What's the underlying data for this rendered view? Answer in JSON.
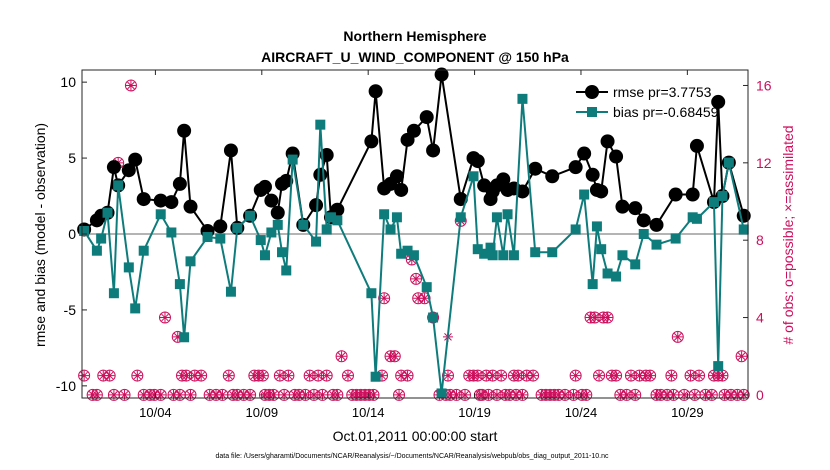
{
  "chart_data": {
    "type": "line",
    "title": "Northern Hemisphere",
    "subtitle": "AIRCRAFT_U_WIND_COMPONENT @ 150 hPa",
    "xlabel": "Oct.01,2011 00:00:00 start",
    "ylabel": "rmse and bias (model - observation)",
    "y2label": "# of obs: o=possible; ×=assimilated",
    "footnote": "data file: /Users/gharamti/Documents/NCAR/Reanalysis/~/Documents/NCAR/Reanalysis/webpub/obs_diag_output_2011-10.nc",
    "xlim": [
      0.3,
      31.6
    ],
    "ylim": [
      -10.8,
      10.8
    ],
    "y2lim": [
      -0.16,
      16.8
    ],
    "xticks": [
      3.75,
      8.75,
      13.75,
      18.75,
      23.75,
      28.75
    ],
    "xtick_labels": [
      "10/04",
      "10/09",
      "10/14",
      "10/19",
      "10/24",
      "10/29"
    ],
    "yticks": [
      -10,
      -5,
      0,
      5,
      10
    ],
    "ytick_labels": [
      "-10",
      "-5",
      "0",
      "5",
      "10"
    ],
    "y2ticks": [
      0,
      4,
      8,
      12,
      16
    ],
    "y2tick_labels": [
      "0",
      "4",
      "8",
      "12",
      "16"
    ],
    "legend_position": "top-right",
    "colors": {
      "rmse": "#000000",
      "bias": "#0f7c7c",
      "obs": "#cc0f5c",
      "zero_line": "#b4b4b4",
      "axis": "#262626"
    },
    "series": [
      {
        "name": "rmse pr=3.7753",
        "marker": "circle",
        "points": [
          [
            0.4,
            0.3
          ],
          [
            1.0,
            0.9
          ],
          [
            1.2,
            1.2
          ],
          [
            1.5,
            1.4
          ],
          [
            1.8,
            4.4
          ],
          [
            2.0,
            3.2
          ],
          [
            2.5,
            4.2
          ],
          [
            2.8,
            4.9
          ],
          [
            3.2,
            2.3
          ],
          [
            4.0,
            2.2
          ],
          [
            4.5,
            2.1
          ],
          [
            4.9,
            3.3
          ],
          [
            5.1,
            6.8
          ],
          [
            5.4,
            1.8
          ],
          [
            6.2,
            0.2
          ],
          [
            6.8,
            0.5
          ],
          [
            7.3,
            5.5
          ],
          [
            7.6,
            0.4
          ],
          [
            8.2,
            1.2
          ],
          [
            8.7,
            2.9
          ],
          [
            8.9,
            3.1
          ],
          [
            9.2,
            2.2
          ],
          [
            9.5,
            1.4
          ],
          [
            9.7,
            3.3
          ],
          [
            9.9,
            3.5
          ],
          [
            10.2,
            5.3
          ],
          [
            10.7,
            0.6
          ],
          [
            11.3,
            1.9
          ],
          [
            11.5,
            3.9
          ],
          [
            11.8,
            5.2
          ],
          [
            12.0,
            1.1
          ],
          [
            12.3,
            1.6
          ],
          [
            13.9,
            6.1
          ],
          [
            14.1,
            9.4
          ],
          [
            14.5,
            3.0
          ],
          [
            14.8,
            3.3
          ],
          [
            15.1,
            3.8
          ],
          [
            15.3,
            2.9
          ],
          [
            15.6,
            6.2
          ],
          [
            15.9,
            6.8
          ],
          [
            16.5,
            7.7
          ],
          [
            16.8,
            5.5
          ],
          [
            17.2,
            10.5
          ],
          [
            18.1,
            2.3
          ],
          [
            18.7,
            5.0
          ],
          [
            18.9,
            4.8
          ],
          [
            19.2,
            3.2
          ],
          [
            19.5,
            2.3
          ],
          [
            19.6,
            2.8
          ],
          [
            19.8,
            3.2
          ],
          [
            20.1,
            3.6
          ],
          [
            20.3,
            2.9
          ],
          [
            20.6,
            3.0
          ],
          [
            21.0,
            2.8
          ],
          [
            21.6,
            4.3
          ],
          [
            22.4,
            3.8
          ],
          [
            23.5,
            4.4
          ],
          [
            23.9,
            5.3
          ],
          [
            24.3,
            3.9
          ],
          [
            24.5,
            2.9
          ],
          [
            24.7,
            2.8
          ],
          [
            25.0,
            6.1
          ],
          [
            25.4,
            5.1
          ],
          [
            25.7,
            1.8
          ],
          [
            26.3,
            1.7
          ],
          [
            26.7,
            0.9
          ],
          [
            27.3,
            0.6
          ],
          [
            28.2,
            2.6
          ],
          [
            29.0,
            2.6
          ],
          [
            29.2,
            5.8
          ],
          [
            30.0,
            2.1
          ],
          [
            30.2,
            8.7
          ],
          [
            30.4,
            2.5
          ],
          [
            30.7,
            4.7
          ],
          [
            31.4,
            1.2
          ]
        ]
      },
      {
        "name": "bias pr=-0.68459",
        "marker": "square",
        "points": [
          [
            0.4,
            0.2
          ],
          [
            1.0,
            -1.1
          ],
          [
            1.2,
            -0.3
          ],
          [
            1.5,
            1.4
          ],
          [
            1.8,
            -3.9
          ],
          [
            2.0,
            3.2
          ],
          [
            2.5,
            -2.2
          ],
          [
            2.8,
            -4.9
          ],
          [
            3.2,
            -1.1
          ],
          [
            4.0,
            1.3
          ],
          [
            4.5,
            0.1
          ],
          [
            4.9,
            -3.3
          ],
          [
            5.1,
            -6.8
          ],
          [
            5.4,
            -1.8
          ],
          [
            6.2,
            -0.2
          ],
          [
            6.8,
            -0.3
          ],
          [
            7.3,
            -3.8
          ],
          [
            7.6,
            0.4
          ],
          [
            8.2,
            1.2
          ],
          [
            8.7,
            -0.4
          ],
          [
            8.9,
            -1.4
          ],
          [
            9.2,
            0.1
          ],
          [
            9.5,
            0.6
          ],
          [
            9.7,
            -1.2
          ],
          [
            9.9,
            -2.4
          ],
          [
            10.2,
            4.9
          ],
          [
            10.7,
            0.6
          ],
          [
            11.3,
            -0.5
          ],
          [
            11.5,
            7.2
          ],
          [
            11.8,
            0.3
          ],
          [
            12.0,
            1.1
          ],
          [
            12.3,
            0.9
          ],
          [
            13.9,
            -3.9
          ],
          [
            14.1,
            -9.4
          ],
          [
            14.5,
            1.3
          ],
          [
            14.8,
            0.3
          ],
          [
            15.1,
            1.1
          ],
          [
            15.3,
            -1.3
          ],
          [
            15.6,
            -1.1
          ],
          [
            15.9,
            -1.4
          ],
          [
            16.5,
            -3.5
          ],
          [
            16.8,
            -5.5
          ],
          [
            17.2,
            -10.5
          ],
          [
            18.1,
            1.1
          ],
          [
            18.7,
            3.8
          ],
          [
            18.9,
            -1.0
          ],
          [
            19.2,
            -1.3
          ],
          [
            19.5,
            -0.9
          ],
          [
            19.6,
            -1.4
          ],
          [
            19.8,
            1.1
          ],
          [
            20.1,
            -1.4
          ],
          [
            20.3,
            1.3
          ],
          [
            20.6,
            -1.4
          ],
          [
            21.0,
            8.9
          ],
          [
            21.6,
            -1.2
          ],
          [
            22.4,
            -1.2
          ],
          [
            23.5,
            0.3
          ],
          [
            23.9,
            2.6
          ],
          [
            24.3,
            -3.3
          ],
          [
            24.5,
            0.5
          ],
          [
            24.7,
            -1.0
          ],
          [
            25.0,
            -2.6
          ],
          [
            25.4,
            -2.8
          ],
          [
            25.7,
            -1.4
          ],
          [
            26.3,
            -2.0
          ],
          [
            26.7,
            0.0
          ],
          [
            27.3,
            -0.7
          ],
          [
            28.2,
            -0.3
          ],
          [
            29.0,
            1.1
          ],
          [
            29.2,
            1.0
          ],
          [
            30.0,
            2.1
          ],
          [
            30.2,
            -8.7
          ],
          [
            30.4,
            2.5
          ],
          [
            30.7,
            4.7
          ],
          [
            31.4,
            0.3
          ]
        ]
      }
    ],
    "obs_counts": {
      "name": "# of obs",
      "possible": [
        [
          0.4,
          1
        ],
        [
          0.8,
          0
        ],
        [
          1.0,
          0
        ],
        [
          1.3,
          1
        ],
        [
          1.6,
          1
        ],
        [
          1.8,
          0
        ],
        [
          2.0,
          12
        ],
        [
          2.3,
          0
        ],
        [
          2.6,
          16
        ],
        [
          2.9,
          1
        ],
        [
          3.2,
          0
        ],
        [
          3.5,
          0
        ],
        [
          3.7,
          0
        ],
        [
          4.0,
          0
        ],
        [
          4.2,
          4
        ],
        [
          4.6,
          0
        ],
        [
          4.8,
          3
        ],
        [
          4.9,
          0
        ],
        [
          5.0,
          1
        ],
        [
          5.2,
          1
        ],
        [
          5.4,
          0
        ],
        [
          5.6,
          1
        ],
        [
          5.9,
          1
        ],
        [
          6.3,
          0
        ],
        [
          6.6,
          0
        ],
        [
          6.9,
          0
        ],
        [
          7.2,
          1
        ],
        [
          7.4,
          0
        ],
        [
          7.6,
          0
        ],
        [
          7.9,
          0
        ],
        [
          8.2,
          0
        ],
        [
          8.4,
          1
        ],
        [
          8.6,
          1
        ],
        [
          8.8,
          1
        ],
        [
          8.9,
          0
        ],
        [
          9.1,
          0
        ],
        [
          9.3,
          0
        ],
        [
          9.6,
          1
        ],
        [
          9.8,
          0
        ],
        [
          10.0,
          1
        ],
        [
          10.3,
          0
        ],
        [
          10.5,
          0
        ],
        [
          10.8,
          0
        ],
        [
          11.0,
          1
        ],
        [
          11.2,
          0
        ],
        [
          11.4,
          1
        ],
        [
          11.6,
          0
        ],
        [
          11.8,
          1
        ],
        [
          12.1,
          0
        ],
        [
          12.3,
          0
        ],
        [
          12.5,
          2
        ],
        [
          12.8,
          1
        ],
        [
          13.0,
          0
        ],
        [
          13.2,
          0
        ],
        [
          13.4,
          0
        ],
        [
          13.6,
          0
        ],
        [
          13.8,
          0
        ],
        [
          14.0,
          0
        ],
        [
          14.4,
          1
        ],
        [
          14.5,
          5
        ],
        [
          14.8,
          2
        ],
        [
          15.0,
          2
        ],
        [
          15.2,
          0
        ],
        [
          15.3,
          1
        ],
        [
          15.6,
          1
        ],
        [
          15.8,
          7
        ],
        [
          16.0,
          6
        ],
        [
          16.1,
          5
        ],
        [
          16.4,
          5
        ],
        [
          16.8,
          4
        ],
        [
          17.1,
          0
        ],
        [
          17.4,
          0
        ],
        [
          17.5,
          1
        ],
        [
          17.6,
          0
        ],
        [
          17.9,
          0
        ],
        [
          18.1,
          9
        ],
        [
          18.3,
          0
        ],
        [
          18.5,
          1
        ],
        [
          18.7,
          1
        ],
        [
          18.9,
          1
        ],
        [
          19.0,
          0
        ],
        [
          19.1,
          0
        ],
        [
          19.3,
          1
        ],
        [
          19.4,
          0
        ],
        [
          19.6,
          1
        ],
        [
          19.8,
          0
        ],
        [
          20.0,
          1
        ],
        [
          20.2,
          0
        ],
        [
          20.4,
          0
        ],
        [
          20.6,
          1
        ],
        [
          20.7,
          0
        ],
        [
          20.8,
          1
        ],
        [
          21.0,
          0
        ],
        [
          21.2,
          1
        ],
        [
          21.5,
          1
        ],
        [
          21.9,
          0
        ],
        [
          22.1,
          0
        ],
        [
          22.3,
          0
        ],
        [
          22.5,
          0
        ],
        [
          22.7,
          0
        ],
        [
          23.0,
          0
        ],
        [
          23.4,
          0
        ],
        [
          23.5,
          1
        ],
        [
          23.8,
          0
        ],
        [
          24.0,
          0
        ],
        [
          24.2,
          4
        ],
        [
          24.4,
          4
        ],
        [
          24.6,
          1
        ],
        [
          24.8,
          4
        ],
        [
          25.0,
          4
        ],
        [
          25.2,
          1
        ],
        [
          25.4,
          1
        ],
        [
          25.6,
          0
        ],
        [
          25.9,
          0
        ],
        [
          26.1,
          1
        ],
        [
          26.3,
          0
        ],
        [
          26.5,
          1
        ],
        [
          26.8,
          1
        ],
        [
          27.0,
          1
        ],
        [
          27.3,
          0
        ],
        [
          27.5,
          0
        ],
        [
          27.8,
          0
        ],
        [
          28.0,
          1
        ],
        [
          28.1,
          0
        ],
        [
          28.3,
          3
        ],
        [
          28.6,
          0
        ],
        [
          28.9,
          1
        ],
        [
          29.1,
          0
        ],
        [
          29.3,
          1
        ],
        [
          29.6,
          0
        ],
        [
          29.9,
          0
        ],
        [
          30.0,
          1
        ],
        [
          30.2,
          1
        ],
        [
          30.4,
          1
        ],
        [
          30.5,
          0
        ],
        [
          30.8,
          0
        ],
        [
          31.1,
          0
        ],
        [
          31.3,
          2
        ],
        [
          31.4,
          0
        ]
      ],
      "assimilated_extra": [
        [
          17.5,
          3
        ]
      ]
    }
  }
}
